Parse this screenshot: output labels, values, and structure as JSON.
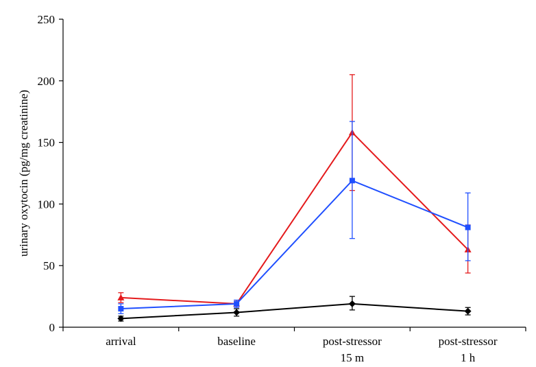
{
  "chart_data": {
    "type": "line",
    "title": "",
    "xlabel": "",
    "ylabel": "urinary oxytocin (pg/mg creatinine)",
    "categories": [
      [
        "arrival"
      ],
      [
        "baseline"
      ],
      [
        "post-stressor",
        "15 m"
      ],
      [
        "post-stressor",
        "1 h"
      ]
    ],
    "ylim": [
      0,
      250
    ],
    "yticks": [
      "0",
      "50",
      "100",
      "150",
      "200",
      "250"
    ],
    "grid": false,
    "legend": "none",
    "series": [
      {
        "color": "#e41a1c",
        "marker": "triangle",
        "values": [
          24,
          19,
          158,
          63
        ],
        "err_low": [
          20,
          17,
          111,
          44
        ],
        "err_high": [
          28,
          21,
          205,
          83
        ]
      },
      {
        "color": "#1f4fff",
        "marker": "square",
        "values": [
          15,
          19,
          119,
          81
        ],
        "err_low": [
          11,
          16,
          72,
          54
        ],
        "err_high": [
          19,
          22,
          167,
          109
        ]
      },
      {
        "color": "#000000",
        "marker": "diamond",
        "values": [
          7,
          12,
          19,
          13
        ],
        "err_low": [
          5,
          9,
          14,
          10
        ],
        "err_high": [
          9,
          15,
          25,
          16
        ]
      }
    ]
  }
}
